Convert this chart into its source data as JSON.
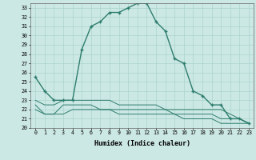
{
  "xlabel": "Humidex (Indice chaleur)",
  "x": [
    0,
    1,
    2,
    3,
    4,
    5,
    6,
    7,
    8,
    9,
    10,
    11,
    12,
    13,
    14,
    15,
    16,
    17,
    18,
    19,
    20,
    21,
    22,
    23
  ],
  "line1": [
    25.5,
    24.0,
    23.0,
    23.0,
    23.0,
    28.5,
    31.0,
    31.5,
    32.5,
    32.5,
    33.0,
    33.5,
    33.5,
    31.5,
    30.5,
    27.5,
    27.0,
    24.0,
    23.5,
    22.5,
    22.5,
    21.0,
    21.0,
    20.5
  ],
  "line2": [
    23.0,
    22.5,
    22.5,
    23.0,
    23.0,
    23.0,
    23.0,
    23.0,
    23.0,
    22.5,
    22.5,
    22.5,
    22.5,
    22.5,
    22.0,
    22.0,
    22.0,
    22.0,
    22.0,
    22.0,
    22.0,
    21.5,
    21.0,
    20.5
  ],
  "line3": [
    22.0,
    21.5,
    21.5,
    22.5,
    22.5,
    22.5,
    22.5,
    22.0,
    22.0,
    22.0,
    22.0,
    22.0,
    22.0,
    22.0,
    22.0,
    21.5,
    21.5,
    21.5,
    21.5,
    21.5,
    21.0,
    21.0,
    21.0,
    20.5
  ],
  "line4": [
    22.5,
    21.5,
    21.5,
    21.5,
    22.0,
    22.0,
    22.0,
    22.0,
    22.0,
    21.5,
    21.5,
    21.5,
    21.5,
    21.5,
    21.5,
    21.5,
    21.0,
    21.0,
    21.0,
    21.0,
    20.5,
    20.5,
    20.5,
    20.5
  ],
  "color": "#2e7d6e",
  "bg_color": "#cce8e4",
  "grid_color": "#aad4ce",
  "ylim": [
    20,
    33.5
  ],
  "xlim": [
    -0.5,
    23.5
  ],
  "yticks": [
    20,
    21,
    22,
    23,
    24,
    25,
    26,
    27,
    28,
    29,
    30,
    31,
    32,
    33
  ],
  "xticks": [
    0,
    1,
    2,
    3,
    4,
    5,
    6,
    7,
    8,
    9,
    10,
    11,
    12,
    13,
    14,
    15,
    16,
    17,
    18,
    19,
    20,
    21,
    22,
    23
  ]
}
